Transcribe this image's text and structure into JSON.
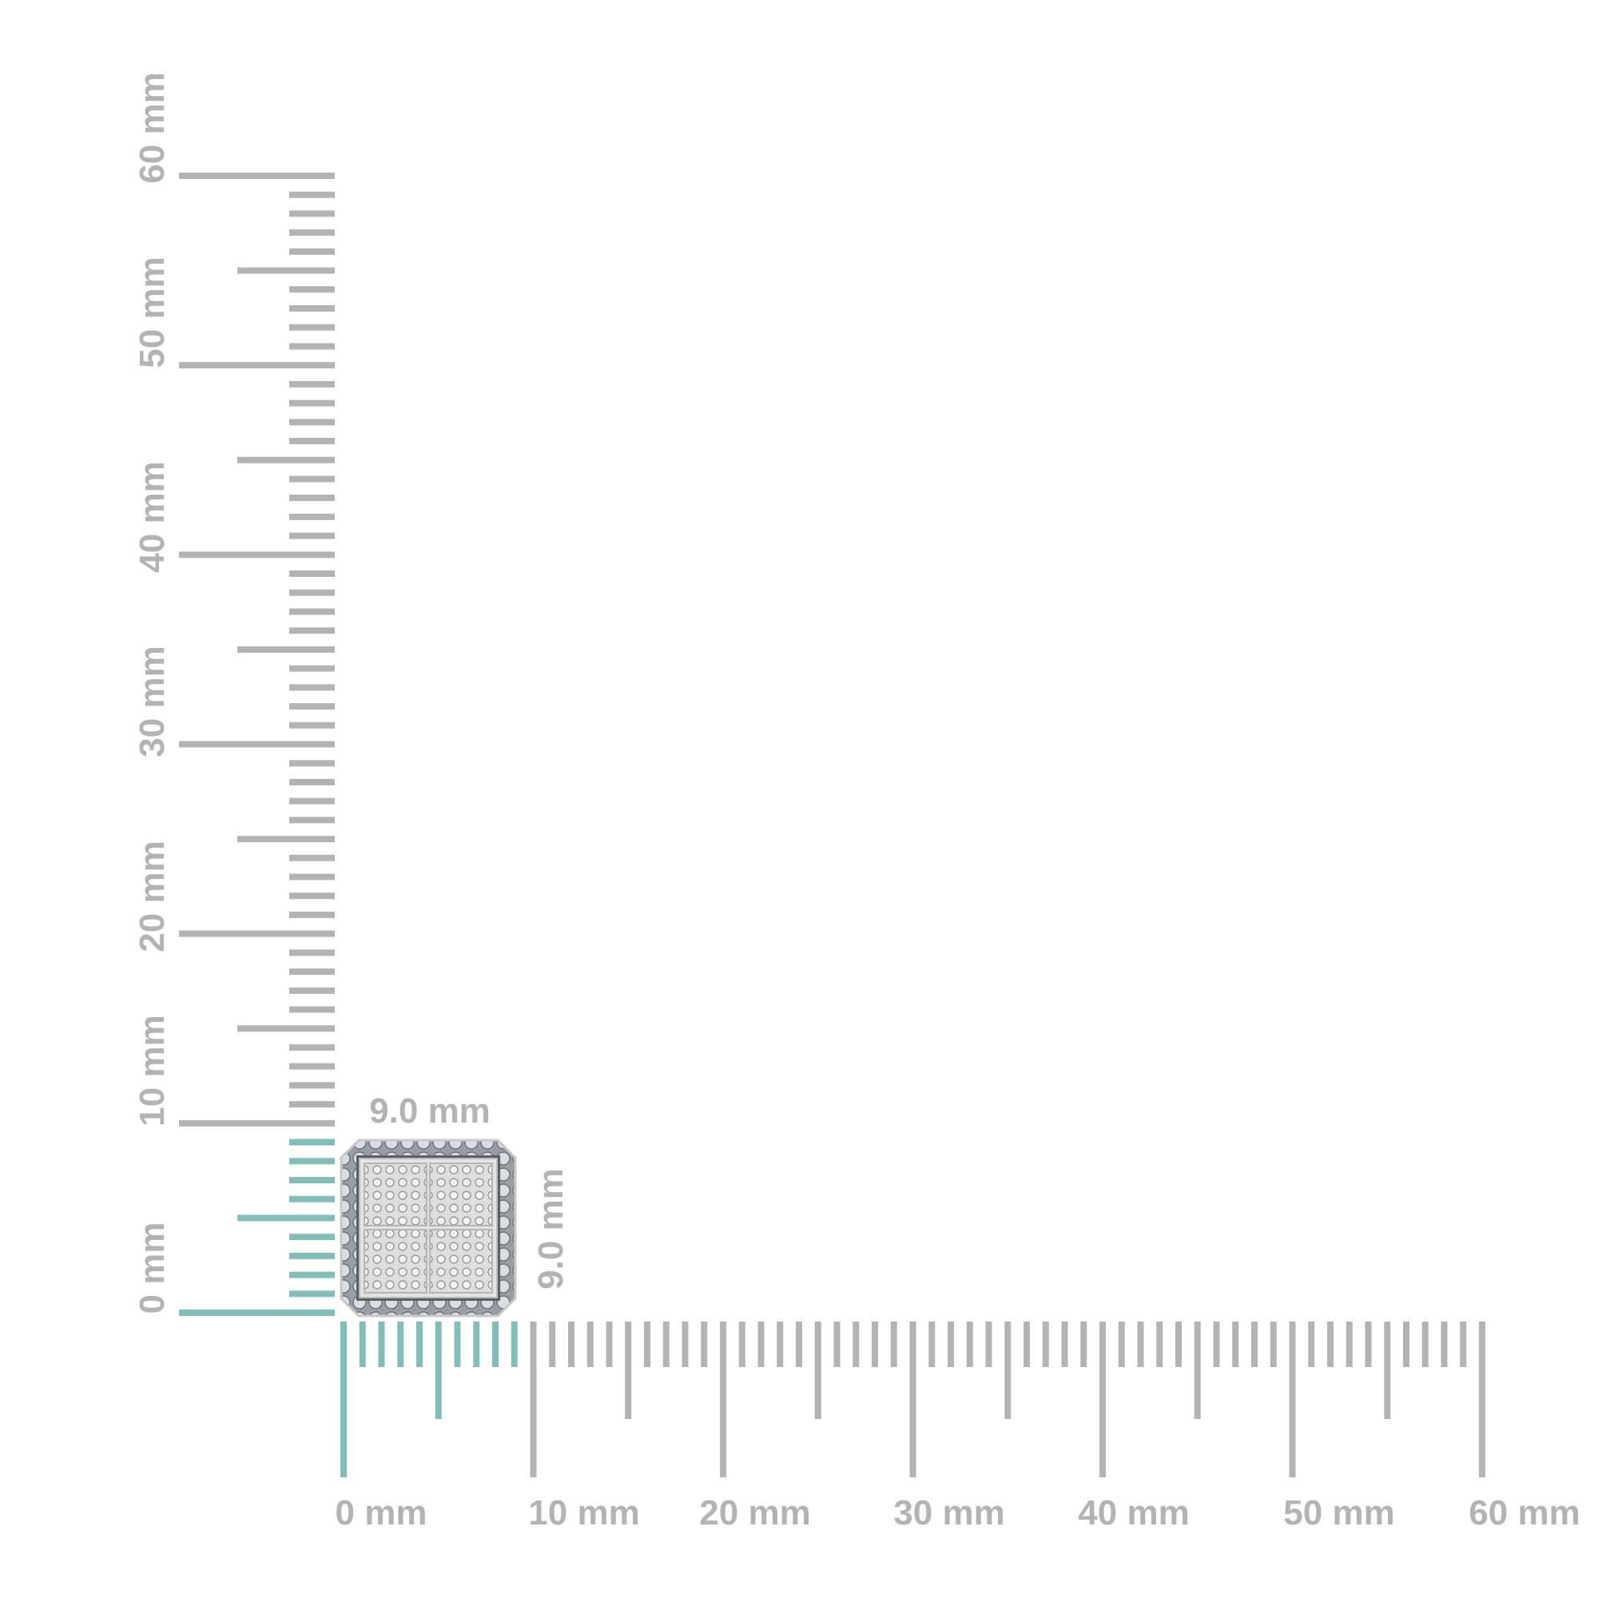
{
  "ruler": {
    "unit": "mm",
    "max_mm": 60,
    "highlight_mm": 9,
    "colors": {
      "tick": "#b3b3b3",
      "highlight": "#7fbfb9",
      "label": "#b3b3b3"
    },
    "x_labels": [
      "0 mm",
      "10 mm",
      "20 mm",
      "30 mm",
      "40 mm",
      "50 mm",
      "60 mm"
    ],
    "y_labels": [
      "0 mm",
      "10 mm",
      "20 mm",
      "30 mm",
      "40 mm",
      "50 mm",
      "60 mm"
    ]
  },
  "product": {
    "width_label": "9.0 mm",
    "height_label": "9.0 mm",
    "metal_color": "#e6e6e6",
    "stone_color": "#cfd8e2"
  }
}
